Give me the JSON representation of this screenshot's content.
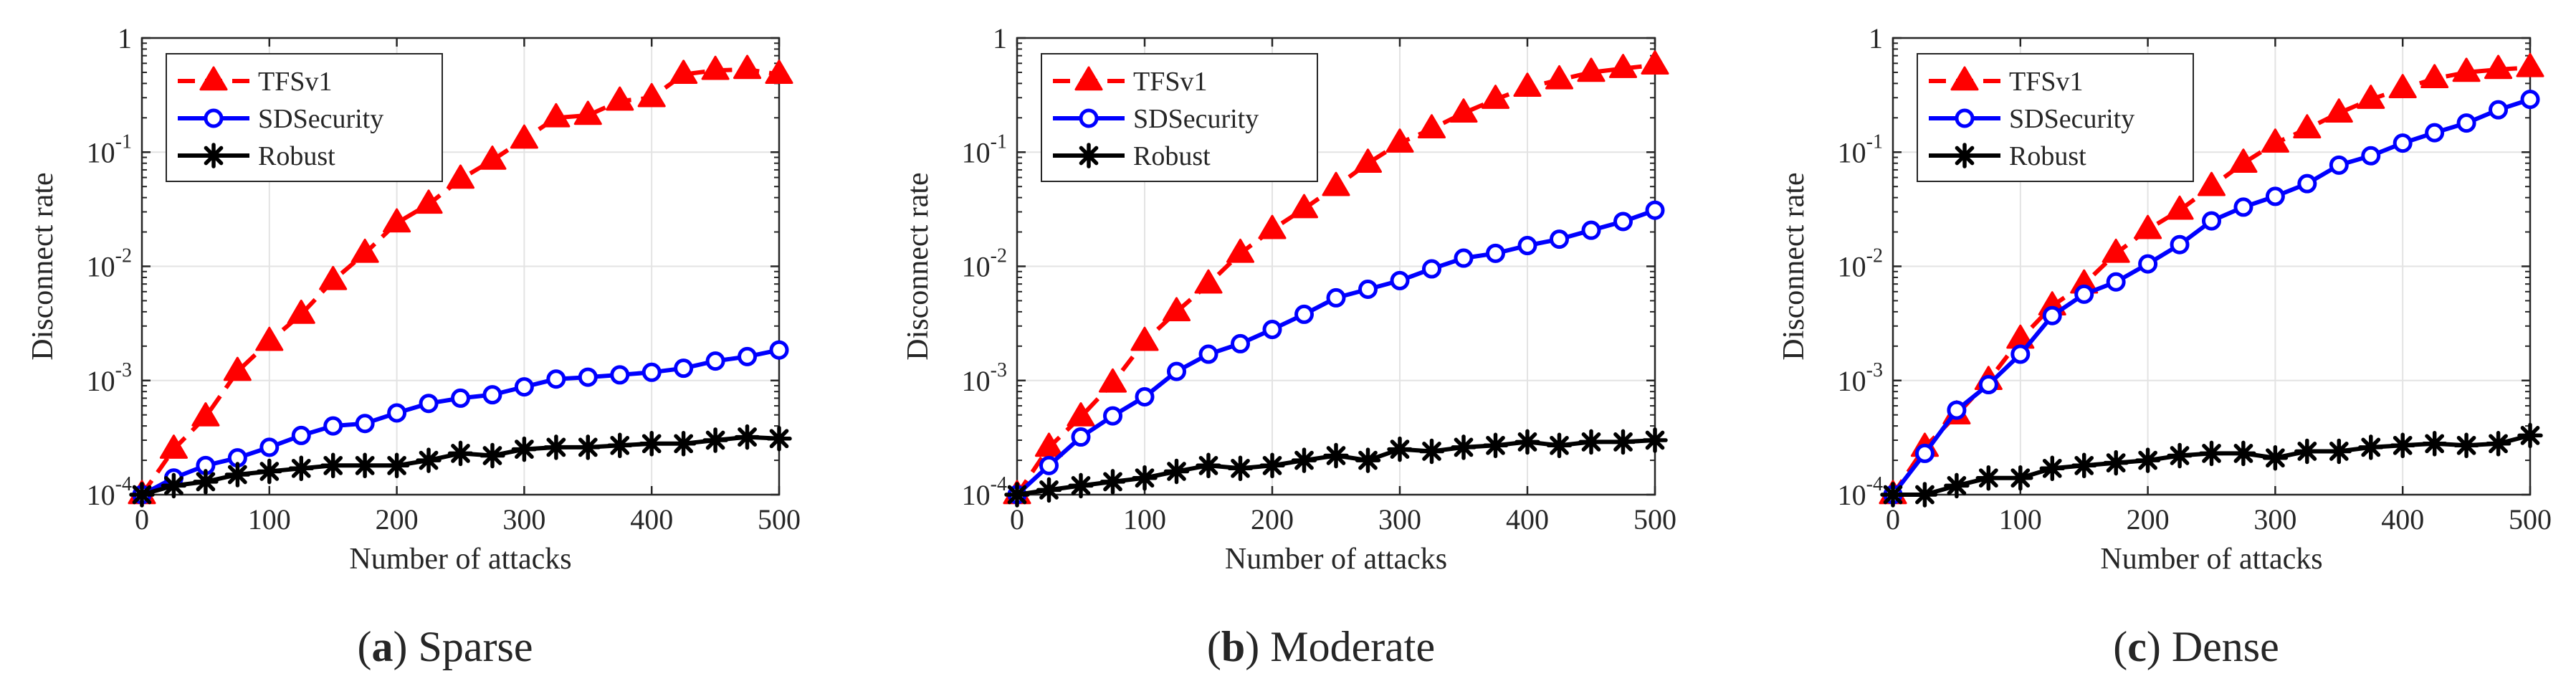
{
  "chart_data": [
    {
      "type": "line",
      "panel": "a",
      "caption_letter": "a",
      "caption_text": "Sparse",
      "xlabel": "Number of attacks",
      "ylabel": "Disconnect rate",
      "yscale": "log",
      "xlim": [
        0,
        500
      ],
      "ylim": [
        0.0001,
        1
      ],
      "grid": true,
      "legend": "top-left",
      "xticks": [
        0,
        100,
        200,
        300,
        400,
        500
      ],
      "xtick_labels": [
        "0",
        "100",
        "200",
        "300",
        "400",
        "500"
      ],
      "yticks": [
        0.0001,
        0.001,
        0.01,
        0.1,
        1
      ],
      "ytick_base": [
        "10",
        "10",
        "10",
        "10",
        "1"
      ],
      "ytick_exp": [
        "-4",
        "-3",
        "-2",
        "-1",
        ""
      ],
      "x": [
        0,
        25,
        50,
        75,
        100,
        125,
        150,
        175,
        200,
        225,
        250,
        275,
        300,
        325,
        350,
        375,
        400,
        425,
        450,
        475,
        500
      ],
      "series": [
        {
          "name": "TFSv1",
          "color": "#ff0000",
          "dash": true,
          "marker": "triangle",
          "values": [
            0.0001,
            0.00025,
            0.00048,
            0.0012,
            0.0022,
            0.0038,
            0.0075,
            0.013,
            0.024,
            0.035,
            0.058,
            0.085,
            0.13,
            0.2,
            0.21,
            0.28,
            0.3,
            0.48,
            0.52,
            0.53,
            0.48
          ]
        },
        {
          "name": "SDSecurity",
          "color": "#0000ff",
          "dash": false,
          "marker": "circle",
          "values": [
            0.0001,
            0.00014,
            0.00018,
            0.00021,
            0.00026,
            0.00033,
            0.0004,
            0.00042,
            0.00052,
            0.00063,
            0.0007,
            0.00075,
            0.00088,
            0.00103,
            0.00107,
            0.00112,
            0.00118,
            0.00128,
            0.00148,
            0.00162,
            0.00185
          ]
        },
        {
          "name": "Robust",
          "color": "#000000",
          "dash": false,
          "marker": "asterisk",
          "values": [
            0.0001,
            0.00012,
            0.00013,
            0.00015,
            0.00016,
            0.00017,
            0.00018,
            0.00018,
            0.00018,
            0.0002,
            0.00023,
            0.00022,
            0.00025,
            0.00026,
            0.00026,
            0.00027,
            0.00028,
            0.00028,
            0.0003,
            0.00032,
            0.00031
          ]
        }
      ]
    },
    {
      "type": "line",
      "panel": "b",
      "caption_letter": "b",
      "caption_text": "Moderate",
      "xlabel": "Number of attacks",
      "ylabel": "Disconnect rate",
      "yscale": "log",
      "xlim": [
        0,
        500
      ],
      "ylim": [
        0.0001,
        1
      ],
      "grid": true,
      "legend": "top-left",
      "xticks": [
        0,
        100,
        200,
        300,
        400,
        500
      ],
      "xtick_labels": [
        "0",
        "100",
        "200",
        "300",
        "400",
        "500"
      ],
      "yticks": [
        0.0001,
        0.001,
        0.01,
        0.1,
        1
      ],
      "ytick_base": [
        "10",
        "10",
        "10",
        "10",
        "1"
      ],
      "ytick_exp": [
        "-4",
        "-3",
        "-2",
        "-1",
        ""
      ],
      "x": [
        0,
        25,
        50,
        75,
        100,
        125,
        150,
        175,
        200,
        225,
        250,
        275,
        300,
        325,
        350,
        375,
        400,
        425,
        450,
        475,
        500
      ],
      "series": [
        {
          "name": "TFSv1",
          "color": "#ff0000",
          "dash": true,
          "marker": "triangle",
          "values": [
            0.0001,
            0.00026,
            0.00048,
            0.00095,
            0.0022,
            0.004,
            0.007,
            0.013,
            0.021,
            0.032,
            0.05,
            0.08,
            0.12,
            0.16,
            0.22,
            0.29,
            0.37,
            0.43,
            0.5,
            0.54,
            0.58
          ]
        },
        {
          "name": "SDSecurity",
          "color": "#0000ff",
          "dash": false,
          "marker": "circle",
          "values": [
            0.0001,
            0.00018,
            0.00032,
            0.00049,
            0.00072,
            0.0012,
            0.0017,
            0.0021,
            0.0028,
            0.0038,
            0.0053,
            0.0063,
            0.0075,
            0.0095,
            0.0118,
            0.013,
            0.0152,
            0.0173,
            0.0207,
            0.0247,
            0.031
          ]
        },
        {
          "name": "Robust",
          "color": "#000000",
          "dash": false,
          "marker": "asterisk",
          "values": [
            0.0001,
            0.00011,
            0.00012,
            0.00013,
            0.00014,
            0.00016,
            0.00018,
            0.00017,
            0.00018,
            0.0002,
            0.00022,
            0.0002,
            0.00025,
            0.00024,
            0.00026,
            0.00027,
            0.00029,
            0.00027,
            0.00029,
            0.00029,
            0.0003
          ]
        }
      ]
    },
    {
      "type": "line",
      "panel": "c",
      "caption_letter": "c",
      "caption_text": "Dense",
      "xlabel": "Number of attacks",
      "ylabel": "Disconnect rate",
      "yscale": "log",
      "xlim": [
        0,
        500
      ],
      "ylim": [
        0.0001,
        1
      ],
      "grid": true,
      "legend": "top-left",
      "xticks": [
        0,
        100,
        200,
        300,
        400,
        500
      ],
      "xtick_labels": [
        "0",
        "100",
        "200",
        "300",
        "400",
        "500"
      ],
      "yticks": [
        0.0001,
        0.001,
        0.01,
        0.1,
        1
      ],
      "ytick_base": [
        "10",
        "10",
        "10",
        "10",
        "1"
      ],
      "ytick_exp": [
        "-4",
        "-3",
        "-2",
        "-1",
        ""
      ],
      "x": [
        0,
        25,
        50,
        75,
        100,
        125,
        150,
        175,
        200,
        225,
        250,
        275,
        300,
        325,
        350,
        375,
        400,
        425,
        450,
        475,
        500
      ],
      "series": [
        {
          "name": "TFSv1",
          "color": "#ff0000",
          "dash": true,
          "marker": "triangle",
          "values": [
            0.0001,
            0.00026,
            0.0005,
            0.001,
            0.0023,
            0.0045,
            0.007,
            0.013,
            0.021,
            0.031,
            0.05,
            0.08,
            0.12,
            0.16,
            0.22,
            0.29,
            0.36,
            0.44,
            0.5,
            0.53,
            0.55
          ]
        },
        {
          "name": "SDSecurity",
          "color": "#0000ff",
          "dash": false,
          "marker": "circle",
          "values": [
            0.0001,
            0.00023,
            0.00055,
            0.00092,
            0.0017,
            0.0037,
            0.0057,
            0.0073,
            0.0105,
            0.0155,
            0.025,
            0.033,
            0.041,
            0.053,
            0.077,
            0.093,
            0.12,
            0.148,
            0.18,
            0.235,
            0.29
          ]
        },
        {
          "name": "Robust",
          "color": "#000000",
          "dash": false,
          "marker": "asterisk",
          "values": [
            0.0001,
            0.0001,
            0.00012,
            0.00014,
            0.00014,
            0.00017,
            0.00018,
            0.00019,
            0.0002,
            0.00022,
            0.00023,
            0.00023,
            0.00021,
            0.00024,
            0.00024,
            0.00026,
            0.00027,
            0.00028,
            0.00027,
            0.00028,
            0.00033
          ]
        }
      ]
    }
  ]
}
